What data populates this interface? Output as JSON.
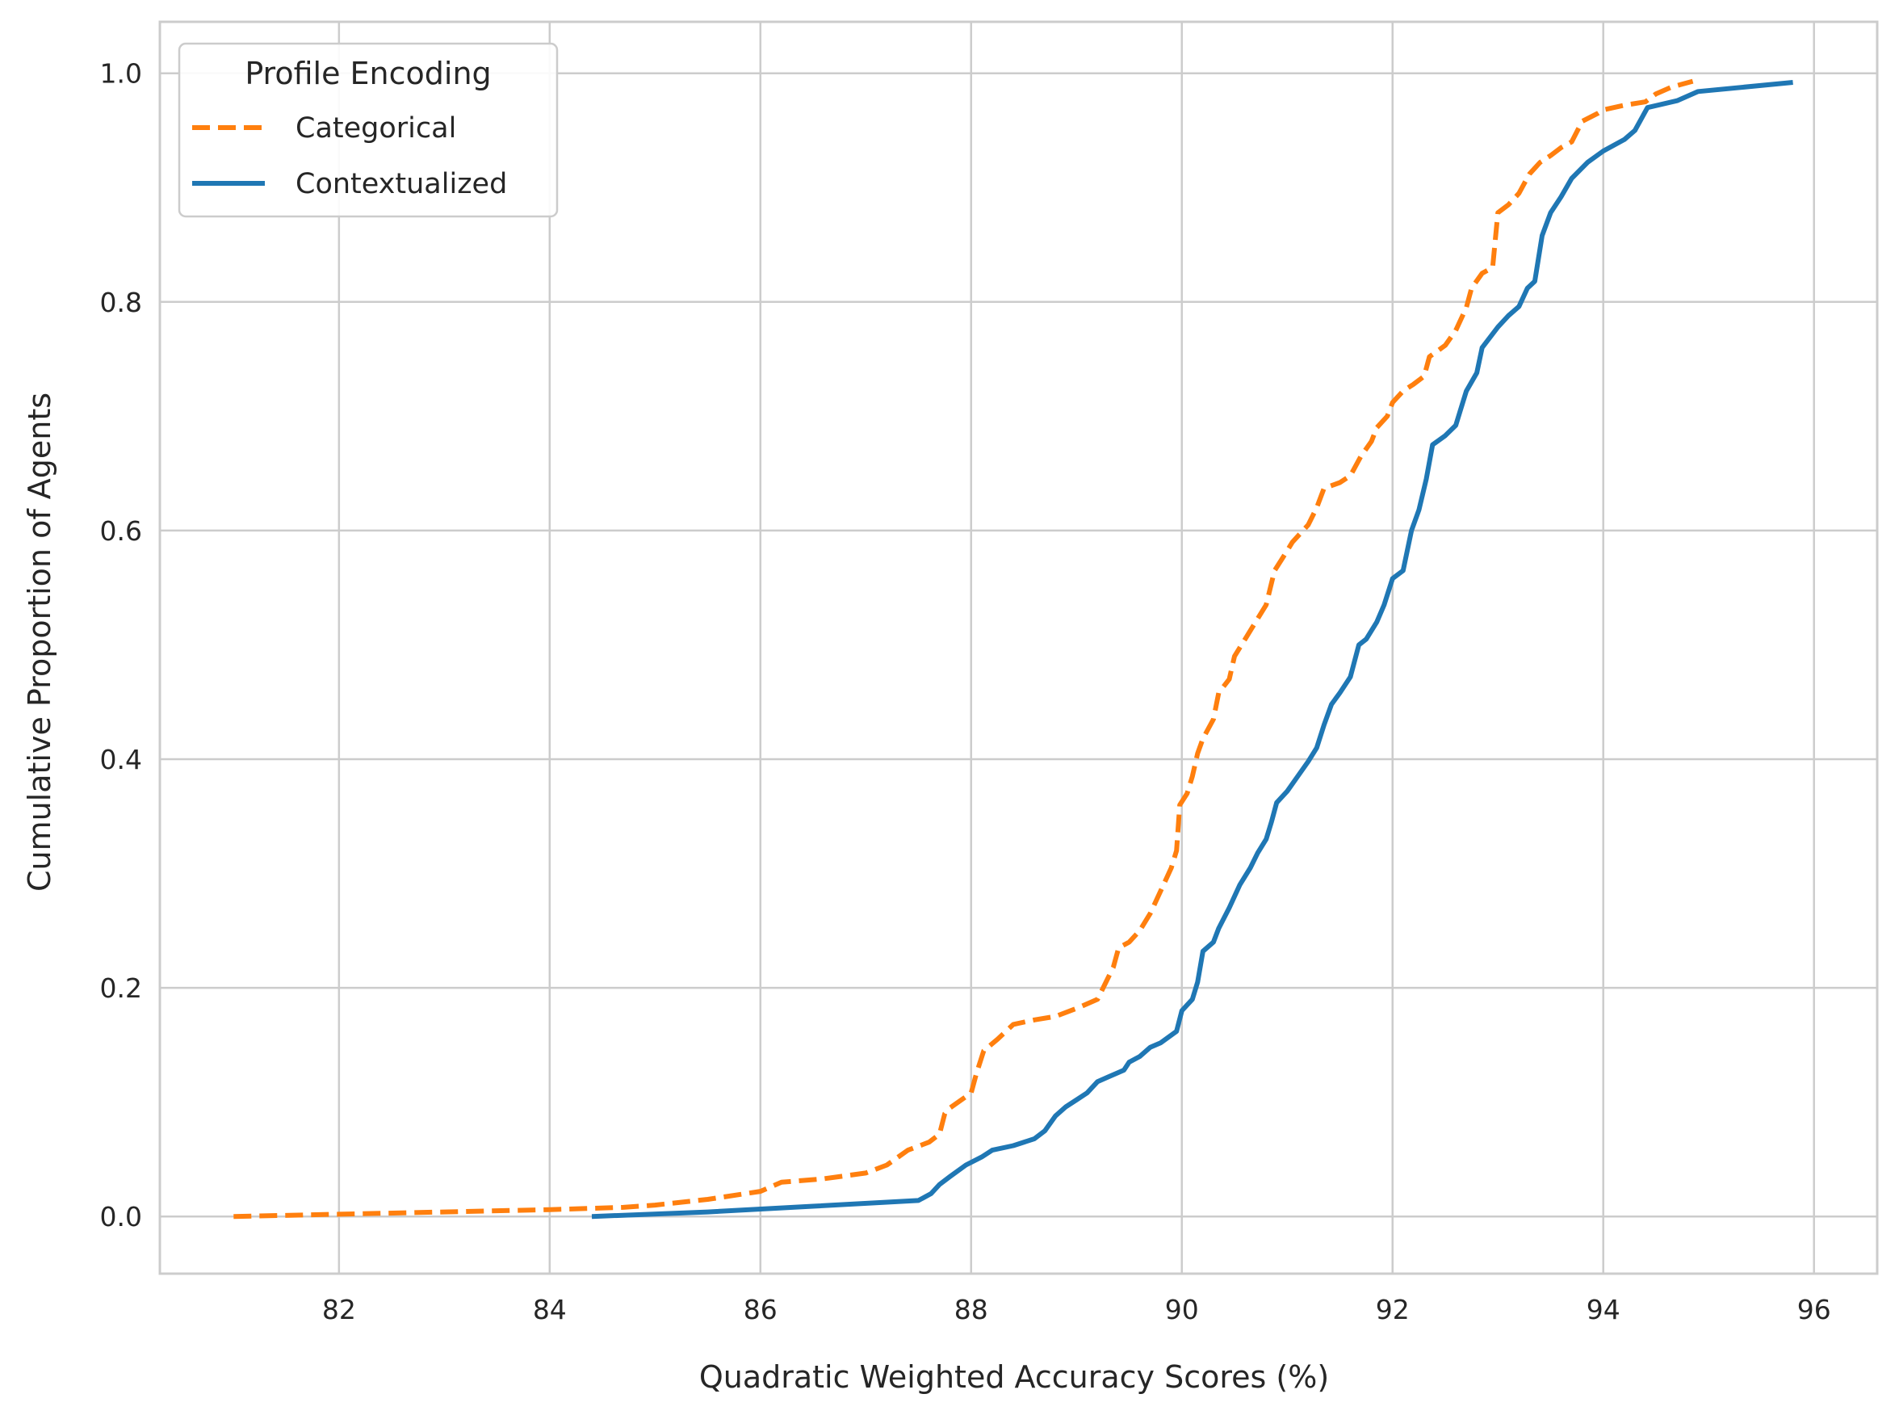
{
  "chart_data": {
    "type": "line",
    "title": "",
    "xlabel": "Quadratic Weighted Accuracy Scores (%)",
    "ylabel": "Cumulative Proportion of Agents",
    "xlim": [
      80.3,
      96.6
    ],
    "ylim": [
      -0.05,
      1.045
    ],
    "xticks": [
      82,
      84,
      86,
      88,
      90,
      92,
      94,
      96
    ],
    "xtick_labels": [
      "82",
      "84",
      "86",
      "88",
      "90",
      "92",
      "94",
      "96"
    ],
    "yticks": [
      0.0,
      0.2,
      0.4,
      0.6,
      0.8,
      1.0
    ],
    "ytick_labels": [
      "0.0",
      "0.2",
      "0.4",
      "0.6",
      "0.8",
      "1.0"
    ],
    "grid": true,
    "legend": {
      "title": "Profile Encoding",
      "location": "top-left",
      "entries": [
        "Categorical",
        "Contextualized"
      ]
    },
    "series": [
      {
        "name": "Categorical",
        "color": "#ff7f0e",
        "style": "dashed",
        "points": [
          [
            81.0,
            0.0
          ],
          [
            82.0,
            0.002
          ],
          [
            83.0,
            0.004
          ],
          [
            84.0,
            0.006
          ],
          [
            84.7,
            0.008
          ],
          [
            85.0,
            0.01
          ],
          [
            85.5,
            0.015
          ],
          [
            86.0,
            0.022
          ],
          [
            86.2,
            0.03
          ],
          [
            86.6,
            0.033
          ],
          [
            87.0,
            0.038
          ],
          [
            87.2,
            0.045
          ],
          [
            87.4,
            0.058
          ],
          [
            87.6,
            0.065
          ],
          [
            87.7,
            0.072
          ],
          [
            87.75,
            0.09
          ],
          [
            87.8,
            0.095
          ],
          [
            88.0,
            0.108
          ],
          [
            88.05,
            0.125
          ],
          [
            88.12,
            0.145
          ],
          [
            88.25,
            0.155
          ],
          [
            88.4,
            0.168
          ],
          [
            88.6,
            0.172
          ],
          [
            88.8,
            0.175
          ],
          [
            89.0,
            0.182
          ],
          [
            89.2,
            0.19
          ],
          [
            89.28,
            0.205
          ],
          [
            89.35,
            0.218
          ],
          [
            89.4,
            0.235
          ],
          [
            89.5,
            0.24
          ],
          [
            89.6,
            0.25
          ],
          [
            89.7,
            0.265
          ],
          [
            89.8,
            0.285
          ],
          [
            89.9,
            0.305
          ],
          [
            89.95,
            0.32
          ],
          [
            89.98,
            0.36
          ],
          [
            90.05,
            0.37
          ],
          [
            90.1,
            0.385
          ],
          [
            90.15,
            0.405
          ],
          [
            90.2,
            0.418
          ],
          [
            90.3,
            0.435
          ],
          [
            90.35,
            0.458
          ],
          [
            90.45,
            0.47
          ],
          [
            90.5,
            0.49
          ],
          [
            90.6,
            0.505
          ],
          [
            90.7,
            0.52
          ],
          [
            90.8,
            0.535
          ],
          [
            90.88,
            0.565
          ],
          [
            90.95,
            0.575
          ],
          [
            91.05,
            0.59
          ],
          [
            91.2,
            0.605
          ],
          [
            91.28,
            0.62
          ],
          [
            91.35,
            0.637
          ],
          [
            91.5,
            0.642
          ],
          [
            91.6,
            0.648
          ],
          [
            91.7,
            0.665
          ],
          [
            91.8,
            0.678
          ],
          [
            91.85,
            0.69
          ],
          [
            91.95,
            0.7
          ],
          [
            92.0,
            0.712
          ],
          [
            92.1,
            0.722
          ],
          [
            92.2,
            0.728
          ],
          [
            92.3,
            0.735
          ],
          [
            92.35,
            0.752
          ],
          [
            92.5,
            0.762
          ],
          [
            92.6,
            0.775
          ],
          [
            92.7,
            0.795
          ],
          [
            92.75,
            0.812
          ],
          [
            92.85,
            0.825
          ],
          [
            92.95,
            0.83
          ],
          [
            93.0,
            0.878
          ],
          [
            93.1,
            0.885
          ],
          [
            93.2,
            0.895
          ],
          [
            93.3,
            0.912
          ],
          [
            93.4,
            0.922
          ],
          [
            93.5,
            0.928
          ],
          [
            93.6,
            0.935
          ],
          [
            93.7,
            0.94
          ],
          [
            93.8,
            0.958
          ],
          [
            93.95,
            0.965
          ],
          [
            94.0,
            0.968
          ],
          [
            94.2,
            0.972
          ],
          [
            94.4,
            0.975
          ],
          [
            94.5,
            0.982
          ],
          [
            94.65,
            0.988
          ],
          [
            94.85,
            0.993
          ]
        ]
      },
      {
        "name": "Contextualized",
        "color": "#1f77b4",
        "style": "solid",
        "points": [
          [
            84.4,
            0.0
          ],
          [
            85.5,
            0.004
          ],
          [
            86.5,
            0.009
          ],
          [
            87.5,
            0.014
          ],
          [
            87.62,
            0.02
          ],
          [
            87.7,
            0.028
          ],
          [
            87.8,
            0.035
          ],
          [
            87.95,
            0.045
          ],
          [
            88.1,
            0.052
          ],
          [
            88.2,
            0.058
          ],
          [
            88.4,
            0.062
          ],
          [
            88.6,
            0.068
          ],
          [
            88.7,
            0.075
          ],
          [
            88.8,
            0.088
          ],
          [
            88.9,
            0.096
          ],
          [
            89.0,
            0.102
          ],
          [
            89.1,
            0.108
          ],
          [
            89.2,
            0.118
          ],
          [
            89.3,
            0.122
          ],
          [
            89.45,
            0.128
          ],
          [
            89.5,
            0.135
          ],
          [
            89.6,
            0.14
          ],
          [
            89.7,
            0.148
          ],
          [
            89.8,
            0.152
          ],
          [
            89.95,
            0.162
          ],
          [
            90.0,
            0.18
          ],
          [
            90.1,
            0.19
          ],
          [
            90.15,
            0.205
          ],
          [
            90.2,
            0.232
          ],
          [
            90.3,
            0.24
          ],
          [
            90.35,
            0.252
          ],
          [
            90.45,
            0.27
          ],
          [
            90.55,
            0.29
          ],
          [
            90.65,
            0.305
          ],
          [
            90.72,
            0.318
          ],
          [
            90.8,
            0.33
          ],
          [
            90.85,
            0.345
          ],
          [
            90.9,
            0.362
          ],
          [
            91.0,
            0.372
          ],
          [
            91.1,
            0.385
          ],
          [
            91.2,
            0.398
          ],
          [
            91.28,
            0.41
          ],
          [
            91.35,
            0.43
          ],
          [
            91.42,
            0.448
          ],
          [
            91.5,
            0.458
          ],
          [
            91.6,
            0.472
          ],
          [
            91.68,
            0.5
          ],
          [
            91.75,
            0.505
          ],
          [
            91.85,
            0.52
          ],
          [
            91.92,
            0.535
          ],
          [
            92.0,
            0.558
          ],
          [
            92.1,
            0.565
          ],
          [
            92.18,
            0.6
          ],
          [
            92.25,
            0.618
          ],
          [
            92.32,
            0.645
          ],
          [
            92.38,
            0.675
          ],
          [
            92.5,
            0.683
          ],
          [
            92.6,
            0.692
          ],
          [
            92.7,
            0.722
          ],
          [
            92.8,
            0.738
          ],
          [
            92.85,
            0.76
          ],
          [
            93.0,
            0.778
          ],
          [
            93.1,
            0.788
          ],
          [
            93.2,
            0.796
          ],
          [
            93.28,
            0.812
          ],
          [
            93.35,
            0.818
          ],
          [
            93.42,
            0.858
          ],
          [
            93.5,
            0.878
          ],
          [
            93.6,
            0.892
          ],
          [
            93.7,
            0.908
          ],
          [
            93.85,
            0.922
          ],
          [
            94.0,
            0.932
          ],
          [
            94.2,
            0.942
          ],
          [
            94.3,
            0.95
          ],
          [
            94.42,
            0.97
          ],
          [
            94.7,
            0.976
          ],
          [
            94.9,
            0.984
          ],
          [
            95.8,
            0.992
          ]
        ]
      }
    ]
  }
}
